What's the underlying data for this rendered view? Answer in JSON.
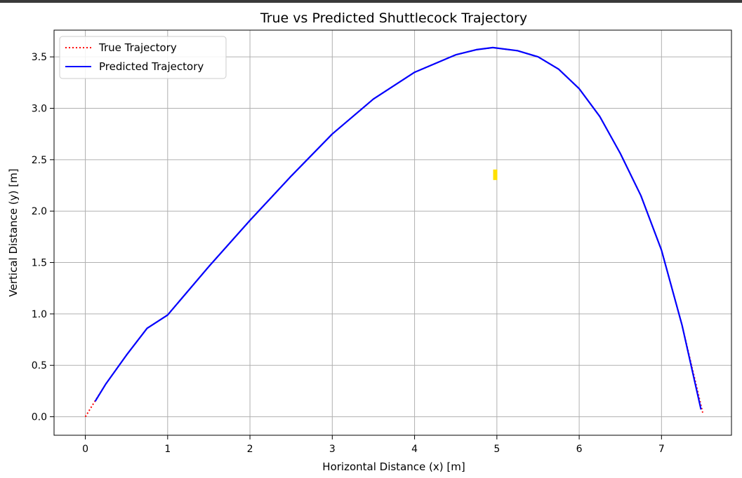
{
  "chart_data": {
    "type": "line",
    "title": "True vs Predicted Shuttlecock Trajectory",
    "xlabel": "Horizontal Distance (x) [m]",
    "ylabel": "Vertical Distance (y) [m]",
    "xlim": [
      -0.38,
      7.85
    ],
    "ylim": [
      -0.18,
      3.76
    ],
    "xticks": [
      0,
      1,
      2,
      3,
      4,
      5,
      6,
      7
    ],
    "yticks": [
      0.0,
      0.5,
      1.0,
      1.5,
      2.0,
      2.5,
      3.0,
      3.5
    ],
    "ytick_labels": [
      "0.0",
      "0.5",
      "1.0",
      "1.5",
      "2.0",
      "2.5",
      "3.0",
      "3.5"
    ],
    "grid": true,
    "legend_position": "top-left",
    "series": [
      {
        "name": "True Trajectory",
        "color": "#ff0000",
        "style": "dotted",
        "x": [
          0.0,
          0.1,
          0.25,
          0.5,
          0.75,
          1.0,
          1.5,
          2.0,
          2.5,
          3.0,
          3.5,
          4.0,
          4.5,
          4.75,
          4.95,
          5.25,
          5.5,
          5.75,
          6.0,
          6.25,
          6.5,
          6.75,
          7.0,
          7.25,
          7.5
        ],
        "y": [
          0.0,
          0.13,
          0.32,
          0.6,
          0.86,
          0.99,
          1.46,
          1.91,
          2.34,
          2.75,
          3.09,
          3.35,
          3.52,
          3.57,
          3.59,
          3.56,
          3.5,
          3.38,
          3.19,
          2.92,
          2.56,
          2.15,
          1.62,
          0.89,
          0.04
        ]
      },
      {
        "name": "Predicted Trajectory",
        "color": "#0000ff",
        "style": "solid",
        "x": [
          0.12,
          0.25,
          0.5,
          0.75,
          1.0,
          1.5,
          2.0,
          2.5,
          3.0,
          3.5,
          4.0,
          4.5,
          4.75,
          4.95,
          5.25,
          5.5,
          5.75,
          6.0,
          6.25,
          6.5,
          6.75,
          7.0,
          7.25,
          7.48
        ],
        "y": [
          0.15,
          0.32,
          0.6,
          0.86,
          0.99,
          1.46,
          1.91,
          2.34,
          2.75,
          3.09,
          3.35,
          3.52,
          3.57,
          3.59,
          3.56,
          3.5,
          3.38,
          3.19,
          2.92,
          2.56,
          2.15,
          1.62,
          0.89,
          0.07
        ]
      }
    ],
    "annotations": [
      {
        "type": "marker",
        "color": "#ffe000",
        "x": 4.98,
        "y": 2.35
      }
    ]
  }
}
